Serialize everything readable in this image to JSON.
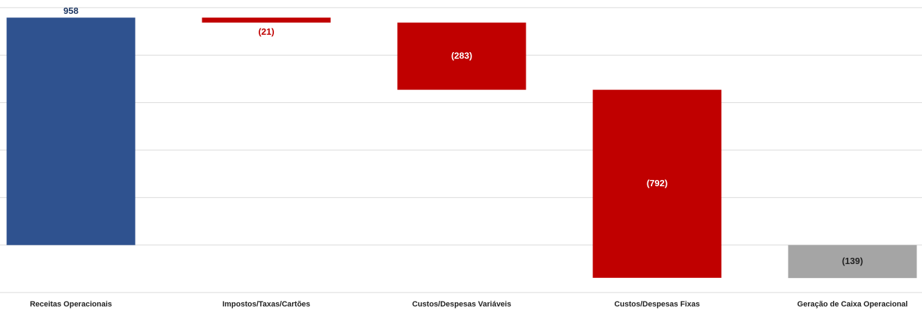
{
  "chart_data": {
    "type": "waterfall",
    "categories": [
      "Receitas Operacionais",
      "Impostos/Taxas/Cartões",
      "Custos/Despesas Variáveis",
      "Custos/Despesas Fixas",
      "Geração de Caixa Operacional"
    ],
    "values": [
      958,
      -21,
      -283,
      -792,
      -139
    ],
    "value_labels": [
      "958",
      "(21)",
      "(283)",
      "(792)",
      "(139)"
    ],
    "measures": [
      "absolute",
      "relative",
      "relative",
      "relative",
      "total"
    ],
    "colors": [
      "#2f528f",
      "#c00000",
      "#c00000",
      "#c00000",
      "#a5a5a5"
    ],
    "ylim": [
      -200,
      1000
    ],
    "yticks": [
      -200,
      0,
      200,
      400,
      600,
      800,
      1000
    ],
    "grid": true
  }
}
